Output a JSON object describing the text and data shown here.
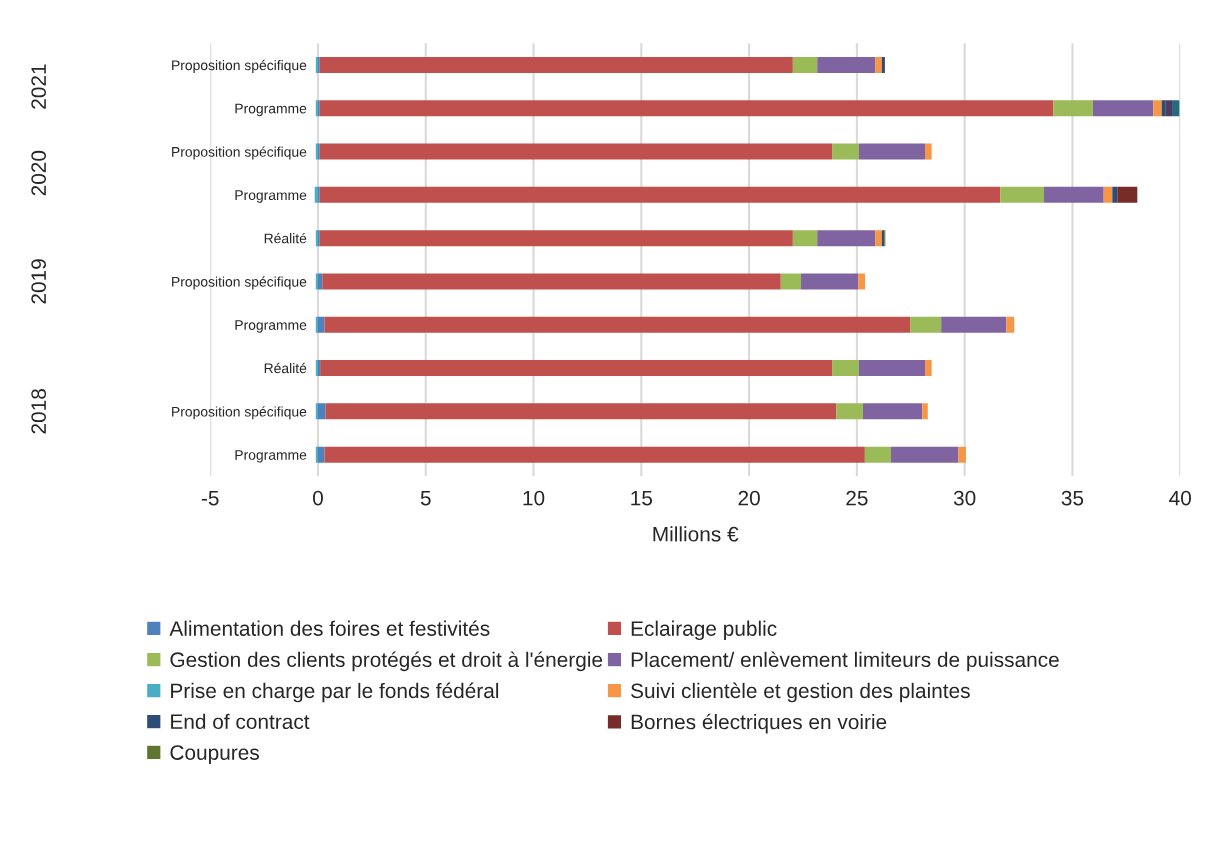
{
  "chart_data": {
    "type": "bar",
    "orientation": "horizontal",
    "stacked": true,
    "xlabel": "Millions €",
    "categories": [
      "Proposition spécifique",
      "Programme",
      "Proposition spécifique",
      "Programme",
      "Réalité",
      "Proposition spécifique",
      "Programme",
      "Réalité",
      "Proposition spécifique",
      "Programme"
    ],
    "annotations": [
      "2021",
      "2020",
      "2019",
      "2018"
    ],
    "series": [
      {
        "name": "Alimentation des foires et festivités",
        "color": "#4f81bd",
        "values": [
          0.08,
          0.08,
          0.08,
          0.08,
          0.08,
          0.2,
          0.3,
          0.1,
          0.35,
          0.3
        ]
      },
      {
        "name": "Eclairage public",
        "color": "#c0504d",
        "values": [
          21.95,
          34.04,
          23.77,
          31.57,
          21.95,
          21.27,
          27.17,
          23.75,
          23.69,
          25.07
        ]
      },
      {
        "name": "Gestion des clients protégés et droit à l'énergie",
        "color": "#9bbb59",
        "values": [
          1.13,
          1.83,
          1.25,
          2.03,
          1.13,
          0.94,
          1.44,
          1.25,
          1.24,
          1.21
        ]
      },
      {
        "name": "Placement/ enlèvement limiteurs de puissance",
        "color": "#8064a2",
        "values": [
          2.69,
          2.8,
          3.06,
          2.77,
          2.69,
          2.65,
          3.02,
          3.06,
          2.75,
          3.12
        ]
      },
      {
        "name": "Prise en charge par le fonds fédéral",
        "color": "#4bacc6",
        "values": [
          -0.1,
          -0.1,
          -0.1,
          -0.15,
          -0.1,
          -0.1,
          -0.1,
          -0.1,
          -0.1,
          -0.1
        ]
      },
      {
        "name": "Suivi clientèle et gestion des plaintes",
        "color": "#f79646",
        "values": [
          0.31,
          0.39,
          0.31,
          0.4,
          0.31,
          0.32,
          0.37,
          0.31,
          0.26,
          0.36
        ]
      },
      {
        "name": "End of contract",
        "color": "#2c4d75",
        "values": [
          0.14,
          0.19,
          null,
          0.23,
          0.11,
          null,
          null,
          null,
          null,
          null
        ]
      },
      {
        "name": "Bornes électriques en voirie",
        "color": "#772c2a",
        "values": [
          null,
          null,
          null,
          0.93,
          null,
          null,
          null,
          null,
          null,
          null
        ]
      },
      {
        "name": "Coupures",
        "color": "#5f7530",
        "values": [
          null,
          null,
          null,
          null,
          0.05,
          null,
          null,
          null,
          null,
          null
        ]
      },
      {
        "color": "#4d3b62",
        "values": [
          null,
          0.29,
          null,
          null,
          null,
          null,
          null,
          null,
          null,
          null
        ]
      },
      {
        "color": "#276a7c",
        "values": [
          null,
          0.34,
          null,
          null,
          null,
          null,
          null,
          null,
          null,
          null
        ]
      }
    ],
    "xlim": [
      -5,
      40
    ],
    "xticks": [
      -5,
      0,
      5,
      10,
      15,
      20,
      25,
      30,
      35,
      40
    ],
    "grid": "x",
    "legend": "bottom"
  }
}
